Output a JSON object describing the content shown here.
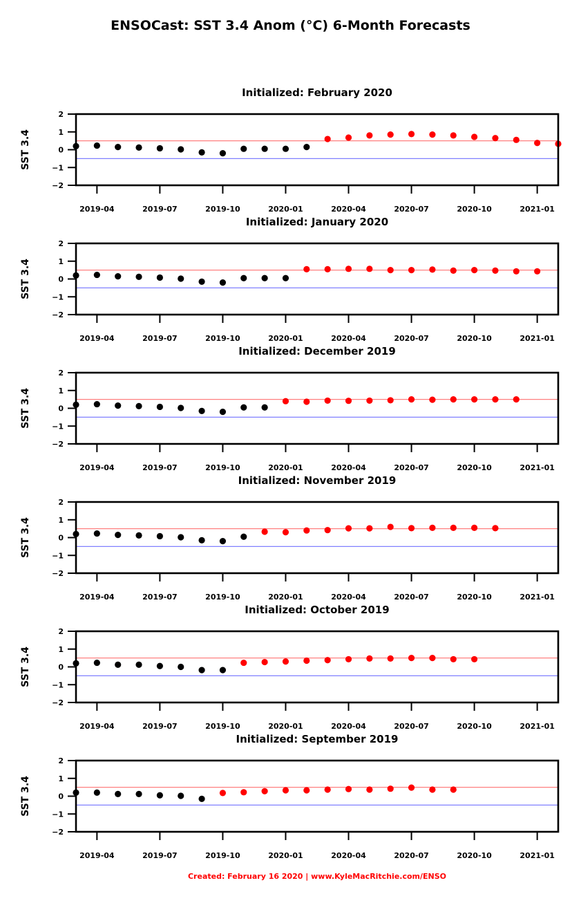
{
  "title": "ENSOCast: SST 3.4 Anom (°C) 6-Month Forecasts",
  "footer": "Created: February 16 2020 | www.KyleMacRitchie.com/ENSO",
  "colors": {
    "observed": "#000000",
    "forecast": "#ff0000",
    "el_nino_threshold_line": "#ff8080",
    "la_nina_threshold_line": "#8080ff",
    "footer": "#ff0000"
  },
  "chart_data": [
    {
      "type": "scatter",
      "title": "Initialized: February 2020",
      "ylabel": "SST 3.4",
      "ylim": [
        -2,
        2
      ],
      "yticks": [
        "−2",
        "−1",
        "0",
        "1",
        "2"
      ],
      "xlim": [
        "2019-03",
        "2021-02"
      ],
      "xticks": [
        "2019-04",
        "2019-07",
        "2019-10",
        "2020-01",
        "2020-04",
        "2020-07",
        "2020-10",
        "2021-01"
      ],
      "hlines": [
        0.5,
        -0.5
      ],
      "series": [
        {
          "x": [
            "2019-03",
            "2019-04",
            "2019-05",
            "2019-06",
            "2019-07",
            "2019-08",
            "2019-09",
            "2019-10",
            "2019-11",
            "2019-12",
            "2020-01",
            "2020-02"
          ],
          "y": [
            0.2,
            0.23,
            0.15,
            0.12,
            0.08,
            0.02,
            -0.15,
            -0.2,
            0.05,
            0.05,
            0.05,
            0.15
          ]
        },
        {
          "x": [
            "2020-03",
            "2020-04",
            "2020-05",
            "2020-06",
            "2020-07",
            "2020-08",
            "2020-09",
            "2020-10",
            "2020-11",
            "2020-12",
            "2021-01",
            "2021-02"
          ],
          "y": [
            0.6,
            0.68,
            0.8,
            0.85,
            0.88,
            0.85,
            0.8,
            0.72,
            0.65,
            0.55,
            0.38,
            0.33
          ]
        }
      ]
    },
    {
      "type": "scatter",
      "title": "Initialized: January 2020",
      "ylabel": "SST 3.4",
      "ylim": [
        -2,
        2
      ],
      "yticks": [
        "−2",
        "−1",
        "0",
        "1",
        "2"
      ],
      "xlim": [
        "2019-03",
        "2021-02"
      ],
      "xticks": [
        "2019-04",
        "2019-07",
        "2019-10",
        "2020-01",
        "2020-04",
        "2020-07",
        "2020-10",
        "2021-01"
      ],
      "hlines": [
        0.5,
        -0.5
      ],
      "series": [
        {
          "x": [
            "2019-03",
            "2019-04",
            "2019-05",
            "2019-06",
            "2019-07",
            "2019-08",
            "2019-09",
            "2019-10",
            "2019-11",
            "2019-12",
            "2020-01"
          ],
          "y": [
            0.2,
            0.23,
            0.15,
            0.12,
            0.08,
            0.02,
            -0.15,
            -0.2,
            0.05,
            0.05,
            0.05
          ]
        },
        {
          "x": [
            "2020-02",
            "2020-03",
            "2020-04",
            "2020-05",
            "2020-06",
            "2020-07",
            "2020-08",
            "2020-09",
            "2020-10",
            "2020-11",
            "2020-12",
            "2021-01"
          ],
          "y": [
            0.55,
            0.55,
            0.57,
            0.57,
            0.5,
            0.5,
            0.53,
            0.47,
            0.5,
            0.47,
            0.43,
            0.43
          ]
        }
      ]
    },
    {
      "type": "scatter",
      "title": "Initialized: December 2019",
      "ylabel": "SST 3.4",
      "ylim": [
        -2,
        2
      ],
      "yticks": [
        "−2",
        "−1",
        "0",
        "1",
        "2"
      ],
      "xlim": [
        "2019-03",
        "2021-02"
      ],
      "xticks": [
        "2019-04",
        "2019-07",
        "2019-10",
        "2020-01",
        "2020-04",
        "2020-07",
        "2020-10",
        "2021-01"
      ],
      "hlines": [
        0.5,
        -0.5
      ],
      "series": [
        {
          "x": [
            "2019-03",
            "2019-04",
            "2019-05",
            "2019-06",
            "2019-07",
            "2019-08",
            "2019-09",
            "2019-10",
            "2019-11",
            "2019-12"
          ],
          "y": [
            0.2,
            0.23,
            0.15,
            0.12,
            0.08,
            0.02,
            -0.15,
            -0.2,
            0.05,
            0.05
          ]
        },
        {
          "x": [
            "2020-01",
            "2020-02",
            "2020-03",
            "2020-04",
            "2020-05",
            "2020-06",
            "2020-07",
            "2020-08",
            "2020-09",
            "2020-10",
            "2020-11",
            "2020-12"
          ],
          "y": [
            0.4,
            0.37,
            0.43,
            0.42,
            0.43,
            0.45,
            0.5,
            0.48,
            0.5,
            0.5,
            0.5,
            0.5
          ]
        }
      ]
    },
    {
      "type": "scatter",
      "title": "Initialized: November 2019",
      "ylabel": "SST 3.4",
      "ylim": [
        -2,
        2
      ],
      "yticks": [
        "−2",
        "−1",
        "0",
        "1",
        "2"
      ],
      "xlim": [
        "2019-03",
        "2021-02"
      ],
      "xticks": [
        "2019-04",
        "2019-07",
        "2019-10",
        "2020-01",
        "2020-04",
        "2020-07",
        "2020-10",
        "2021-01"
      ],
      "hlines": [
        0.5,
        -0.5
      ],
      "series": [
        {
          "x": [
            "2019-03",
            "2019-04",
            "2019-05",
            "2019-06",
            "2019-07",
            "2019-08",
            "2019-09",
            "2019-10",
            "2019-11"
          ],
          "y": [
            0.2,
            0.23,
            0.15,
            0.12,
            0.08,
            0.02,
            -0.15,
            -0.2,
            0.05
          ]
        },
        {
          "x": [
            "2019-12",
            "2020-01",
            "2020-02",
            "2020-03",
            "2020-04",
            "2020-05",
            "2020-06",
            "2020-07",
            "2020-08",
            "2020-09",
            "2020-10",
            "2020-11"
          ],
          "y": [
            0.33,
            0.3,
            0.4,
            0.42,
            0.52,
            0.52,
            0.6,
            0.53,
            0.55,
            0.55,
            0.55,
            0.53
          ]
        }
      ]
    },
    {
      "type": "scatter",
      "title": "Initialized: October 2019",
      "ylabel": "SST 3.4",
      "ylim": [
        -2,
        2
      ],
      "yticks": [
        "−2",
        "−1",
        "0",
        "1",
        "2"
      ],
      "xlim": [
        "2019-03",
        "2021-02"
      ],
      "xticks": [
        "2019-04",
        "2019-07",
        "2019-10",
        "2020-01",
        "2020-04",
        "2020-07",
        "2020-10",
        "2021-01"
      ],
      "hlines": [
        0.5,
        -0.5
      ],
      "series": [
        {
          "x": [
            "2019-03",
            "2019-04",
            "2019-05",
            "2019-06",
            "2019-07",
            "2019-08",
            "2019-09",
            "2019-10"
          ],
          "y": [
            0.2,
            0.23,
            0.12,
            0.12,
            0.05,
            0.0,
            -0.18,
            -0.18
          ]
        },
        {
          "x": [
            "2019-11",
            "2019-12",
            "2020-01",
            "2020-02",
            "2020-03",
            "2020-04",
            "2020-05",
            "2020-06",
            "2020-07",
            "2020-08",
            "2020-09",
            "2020-10"
          ],
          "y": [
            0.23,
            0.27,
            0.3,
            0.35,
            0.38,
            0.43,
            0.47,
            0.47,
            0.5,
            0.5,
            0.43,
            0.43
          ]
        }
      ]
    },
    {
      "type": "scatter",
      "title": "Initialized: September 2019",
      "ylabel": "SST 3.4",
      "ylim": [
        -2,
        2
      ],
      "yticks": [
        "−2",
        "−1",
        "0",
        "1",
        "2"
      ],
      "xlim": [
        "2019-03",
        "2021-02"
      ],
      "xticks": [
        "2019-04",
        "2019-07",
        "2019-10",
        "2020-01",
        "2020-04",
        "2020-07",
        "2020-10",
        "2021-01"
      ],
      "hlines": [
        0.5,
        -0.5
      ],
      "series": [
        {
          "x": [
            "2019-03",
            "2019-04",
            "2019-05",
            "2019-06",
            "2019-07",
            "2019-08",
            "2019-09"
          ],
          "y": [
            0.2,
            0.2,
            0.12,
            0.12,
            0.05,
            0.02,
            -0.15
          ]
        },
        {
          "x": [
            "2019-10",
            "2019-11",
            "2019-12",
            "2020-01",
            "2020-02",
            "2020-03",
            "2020-04",
            "2020-05",
            "2020-06",
            "2020-07",
            "2020-08",
            "2020-09"
          ],
          "y": [
            0.18,
            0.22,
            0.28,
            0.33,
            0.33,
            0.37,
            0.4,
            0.37,
            0.42,
            0.48,
            0.37,
            0.37
          ]
        }
      ]
    }
  ]
}
